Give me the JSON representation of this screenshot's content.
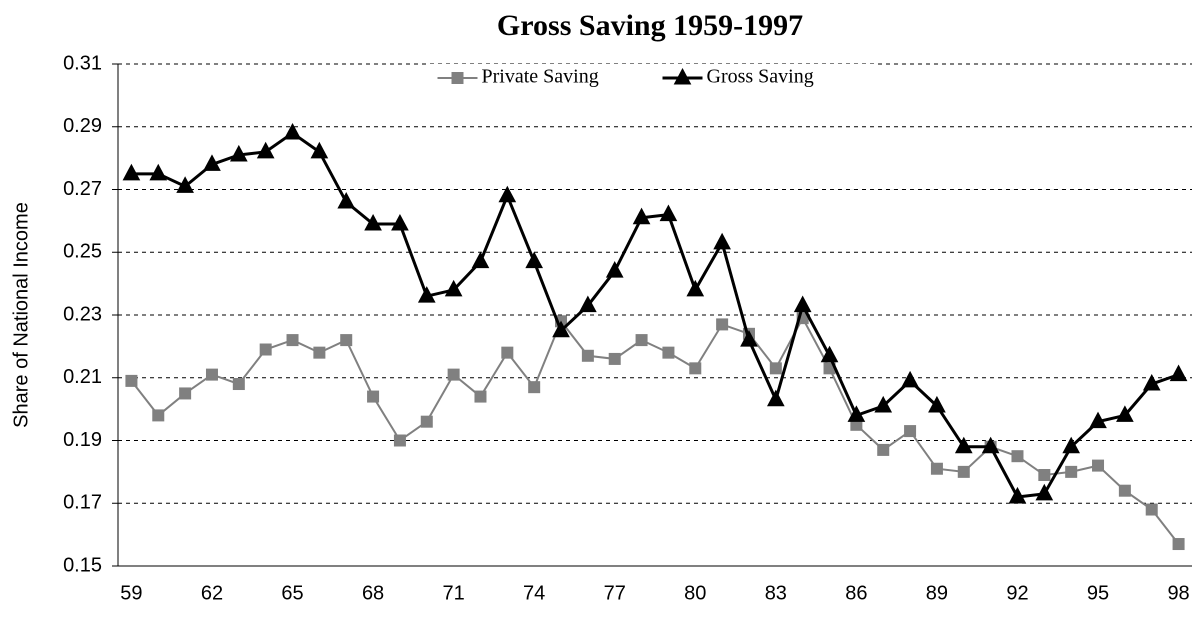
{
  "chart_data": {
    "type": "line",
    "title": "Gross Saving 1959-1997",
    "ylabel": "Share of National Income",
    "categories": [
      "59",
      null,
      null,
      "62",
      null,
      null,
      "65",
      null,
      null,
      "68",
      null,
      null,
      "71",
      null,
      null,
      "74",
      null,
      null,
      "77",
      null,
      null,
      "80",
      null,
      null,
      "83",
      null,
      null,
      "86",
      null,
      null,
      "89",
      null,
      null,
      "92",
      null,
      null,
      "95",
      null,
      null,
      "98"
    ],
    "series": [
      {
        "name": "Private Saving",
        "color": "#808080",
        "marker": "square",
        "values": [
          0.209,
          0.198,
          0.205,
          0.211,
          0.208,
          0.219,
          0.222,
          0.218,
          0.222,
          0.204,
          0.19,
          0.196,
          0.211,
          0.204,
          0.218,
          0.207,
          0.228,
          0.217,
          0.216,
          0.222,
          0.218,
          0.213,
          0.227,
          0.224,
          0.213,
          0.229,
          0.213,
          0.195,
          0.187,
          0.193,
          0.181,
          0.18,
          0.188,
          0.185,
          0.179,
          0.18,
          0.182,
          0.174,
          0.168,
          0.157
        ]
      },
      {
        "name": "Gross Saving",
        "color": "#000000",
        "marker": "triangle",
        "values": [
          0.275,
          0.275,
          0.271,
          0.278,
          0.281,
          0.282,
          0.288,
          0.282,
          0.266,
          0.259,
          0.259,
          0.236,
          0.238,
          0.247,
          0.268,
          0.247,
          0.225,
          0.233,
          0.244,
          0.261,
          0.262,
          0.238,
          0.253,
          0.222,
          0.203,
          0.233,
          0.217,
          0.198,
          0.201,
          0.209,
          0.201,
          0.188,
          0.188,
          0.172,
          0.173,
          0.188,
          0.196,
          0.198,
          0.208,
          0.211
        ]
      }
    ],
    "ylim": [
      0.15,
      0.31
    ],
    "yticks": [
      0.15,
      0.17,
      0.19,
      0.21,
      0.23,
      0.25,
      0.27,
      0.29,
      0.31
    ],
    "grid": true,
    "legend": "upper center"
  }
}
